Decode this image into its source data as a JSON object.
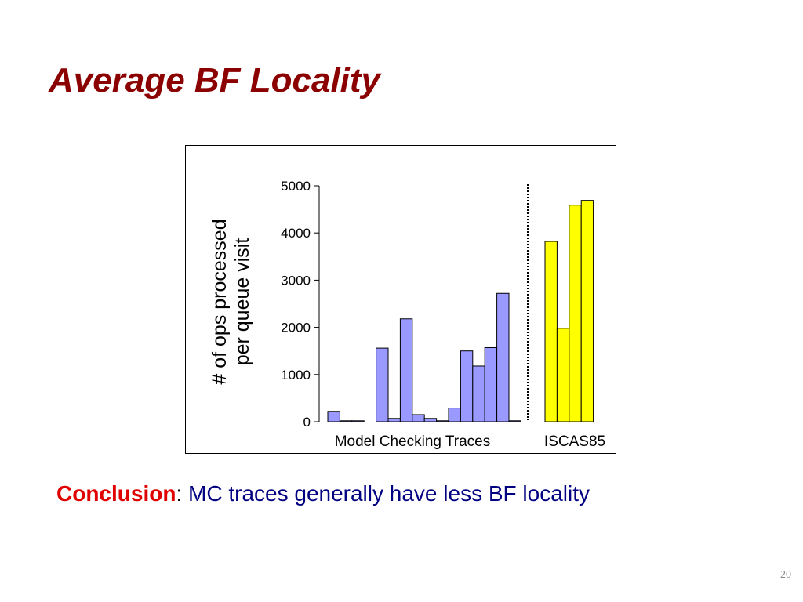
{
  "slide": {
    "title": "Average BF Locality",
    "conclusion_label": "Conclusion",
    "conclusion_colon": ":",
    "conclusion_text": "MC traces generally have less BF locality",
    "page_number": "20"
  },
  "colors": {
    "title": "#8b0000",
    "conclusion_label": "#e00000",
    "conclusion_text": "#000080",
    "mc_bar": "#9999ff",
    "iscas_bar": "#ffff00"
  },
  "chart_data": {
    "type": "bar",
    "ylabel_lines": [
      "# of ops processed",
      "per queue visit"
    ],
    "ylim": [
      0,
      5000
    ],
    "yticks": [
      0,
      1000,
      2000,
      3000,
      4000,
      5000
    ],
    "grid": false,
    "legend": "none",
    "groups": [
      {
        "name": "Model Checking Traces",
        "color": "#9999ff",
        "values": [
          220,
          20,
          20,
          0,
          1560,
          70,
          2180,
          150,
          70,
          20,
          290,
          1500,
          1180,
          1570,
          2720,
          20
        ]
      },
      {
        "name": "ISCAS85",
        "color": "#ffff00",
        "values": [
          3820,
          1980,
          4590,
          4690
        ]
      }
    ],
    "separator": "dotted-vertical-line"
  }
}
